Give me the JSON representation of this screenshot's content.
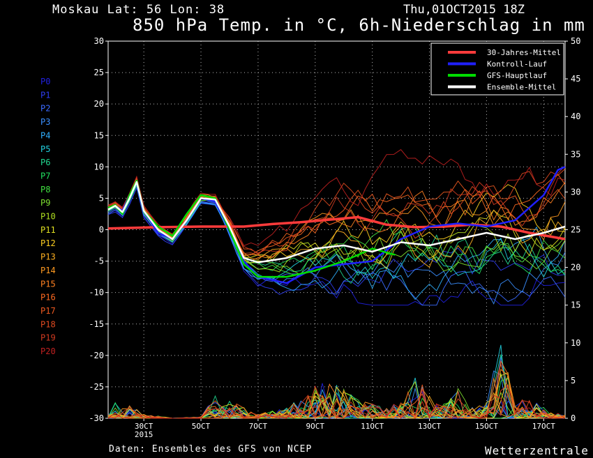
{
  "header": {
    "location": "Moskau  Lat: 56 Lon: 38",
    "datetime": "Thu,01OCT2015 18Z",
    "title": "850 hPa Temp. in °C, 6h-Niederschlag in mm"
  },
  "footer": {
    "credit": "Daten: Ensembles des GFS von NCEP",
    "brand": "Wetterzentrale"
  },
  "colors": {
    "background": "#000000",
    "climate": "#ff3b3b",
    "control": "#2020ff",
    "gfs": "#00dd00",
    "mean": "#ffffff"
  },
  "chart_data": {
    "type": "line",
    "x_axis": {
      "ticks": [
        {
          "label": "30CT",
          "day": 3
        },
        {
          "label": "5OCT",
          "day": 5
        },
        {
          "label": "7OCT",
          "day": 7
        },
        {
          "label": "9OCT",
          "day": 9
        },
        {
          "label": "11OCT",
          "day": 11
        },
        {
          "label": "13OCT",
          "day": 13
        },
        {
          "label": "15OCT",
          "day": 15
        },
        {
          "label": "17OCT",
          "day": 17
        }
      ],
      "year_label": "2015",
      "range_days": [
        1.75,
        17.75
      ]
    },
    "y_left": {
      "min": -30,
      "max": 30,
      "step": 5,
      "unit": "°C"
    },
    "y_right": {
      "min": 0,
      "max": 50,
      "step": 5,
      "unit": "mm"
    },
    "grid": true,
    "legend": {
      "position": "top-right",
      "entries": [
        {
          "label": "30-Jahres-Mittel",
          "color": "#ff3b3b"
        },
        {
          "label": "Kontroll-Lauf",
          "color": "#2020ff"
        },
        {
          "label": "GFS-Hauptlauf",
          "color": "#00dd00"
        },
        {
          "label": "Ensemble-Mittel",
          "color": "#ffffff"
        }
      ]
    },
    "members": [
      {
        "name": "P0",
        "color": "#2020e0"
      },
      {
        "name": "P1",
        "color": "#2d3df0"
      },
      {
        "name": "P2",
        "color": "#3a6aff"
      },
      {
        "name": "P3",
        "color": "#3a8fff"
      },
      {
        "name": "P4",
        "color": "#30b0ff"
      },
      {
        "name": "P5",
        "color": "#20d0e0"
      },
      {
        "name": "P6",
        "color": "#20d890"
      },
      {
        "name": "P7",
        "color": "#20e060"
      },
      {
        "name": "P8",
        "color": "#40e040"
      },
      {
        "name": "P9",
        "color": "#7ee030"
      },
      {
        "name": "P10",
        "color": "#b0e020"
      },
      {
        "name": "P11",
        "color": "#e0e020"
      },
      {
        "name": "P12",
        "color": "#ffd020"
      },
      {
        "name": "P13",
        "color": "#ffb020"
      },
      {
        "name": "P14",
        "color": "#ff9a20"
      },
      {
        "name": "P15",
        "color": "#ff8020"
      },
      {
        "name": "P16",
        "color": "#ff6a20"
      },
      {
        "name": "P17",
        "color": "#f05a20"
      },
      {
        "name": "P18",
        "color": "#e04a20"
      },
      {
        "name": "P19",
        "color": "#d03a20"
      },
      {
        "name": "P20",
        "color": "#c02020"
      }
    ],
    "series": [
      {
        "name": "30-Jahres-Mittel",
        "color": "#ff3b3b",
        "axis": "left",
        "x": [
          1.75,
          3.5,
          5.0,
          6.5,
          7.5,
          8.5,
          9.5,
          10.5,
          11.5,
          12.5,
          13.5,
          14.5,
          15.5,
          16.5,
          17.75
        ],
        "values": [
          0.2,
          0.4,
          0.5,
          0.5,
          0.9,
          1.2,
          1.6,
          2.0,
          0.8,
          0.4,
          0.5,
          0.8,
          0.5,
          -0.5,
          -1.5
        ]
      },
      {
        "name": "Kontroll-Lauf",
        "color": "#2020ff",
        "axis": "left",
        "x": [
          1.75,
          2.0,
          2.25,
          2.5,
          2.75,
          3.0,
          3.5,
          4.0,
          4.5,
          5.0,
          5.5,
          6.0,
          6.5,
          7.0,
          8.0,
          9.0,
          10.0,
          11.0,
          12.0,
          13.0,
          14.0,
          15.0,
          16.0,
          16.5,
          17.0,
          17.5,
          17.75
        ],
        "values": [
          3.5,
          3.8,
          3.0,
          5.5,
          7.5,
          3.0,
          -0.5,
          -1.5,
          1.5,
          5.0,
          4.5,
          0.0,
          -5.0,
          -7.5,
          -8.5,
          -6.0,
          -5.5,
          -5.0,
          -1.5,
          0.5,
          1.0,
          0.5,
          1.5,
          3.5,
          5.5,
          9.5,
          10.0
        ]
      },
      {
        "name": "GFS-Hauptlauf",
        "color": "#00dd00",
        "axis": "left",
        "x": [
          1.75,
          2.0,
          2.25,
          2.5,
          2.75,
          3.0,
          3.5,
          4.0,
          4.5,
          5.0,
          5.5,
          6.0,
          6.5,
          7.0,
          8.0,
          9.0,
          10.0,
          11.0,
          11.8
        ],
        "values": [
          3.5,
          3.9,
          2.5,
          5.5,
          7.8,
          3.0,
          0.5,
          -1.0,
          2.5,
          5.5,
          5.0,
          0.0,
          -5.5,
          -7.5,
          -7.5,
          -6.5,
          -5.0,
          -3.0,
          -4.0
        ]
      },
      {
        "name": "Ensemble-Mittel",
        "color": "#ffffff",
        "axis": "left",
        "x": [
          1.75,
          2.0,
          2.25,
          2.5,
          2.75,
          3.0,
          3.5,
          4.0,
          4.5,
          5.0,
          5.5,
          6.0,
          6.5,
          7.0,
          8.0,
          9.0,
          10.0,
          11.0,
          12.0,
          13.0,
          14.0,
          15.0,
          16.0,
          17.0,
          17.75
        ],
        "values": [
          3.2,
          3.8,
          2.8,
          5.0,
          7.6,
          3.0,
          0.0,
          -1.5,
          1.5,
          5.0,
          4.8,
          0.5,
          -4.5,
          -5.2,
          -4.5,
          -3.0,
          -2.5,
          -3.5,
          -2.0,
          -2.5,
          -1.5,
          -0.5,
          -1.5,
          -0.5,
          0.5
        ]
      }
    ],
    "precipitation": {
      "axis": "right",
      "unit": "mm",
      "x": [
        1.75,
        2.0,
        2.25,
        2.5,
        2.75,
        3.0,
        3.5,
        4.0,
        5.0,
        5.5,
        6.0,
        7.0,
        8.0,
        9.0,
        9.5,
        10.0,
        10.5,
        11.0,
        11.5,
        12.0,
        12.5,
        13.0,
        13.5,
        14.0,
        14.5,
        15.0,
        15.5,
        16.0,
        16.5,
        17.0,
        17.75
      ],
      "max_values": [
        0.5,
        2.2,
        1.4,
        2.0,
        1.5,
        0.5,
        0.3,
        0.0,
        0.2,
        3.0,
        2.5,
        0.5,
        1.5,
        4.5,
        5.0,
        4.0,
        2.5,
        2.0,
        1.5,
        2.5,
        6.5,
        3.0,
        2.0,
        4.0,
        1.5,
        2.5,
        10.5,
        2.0,
        3.0,
        1.5,
        0.5
      ]
    }
  }
}
